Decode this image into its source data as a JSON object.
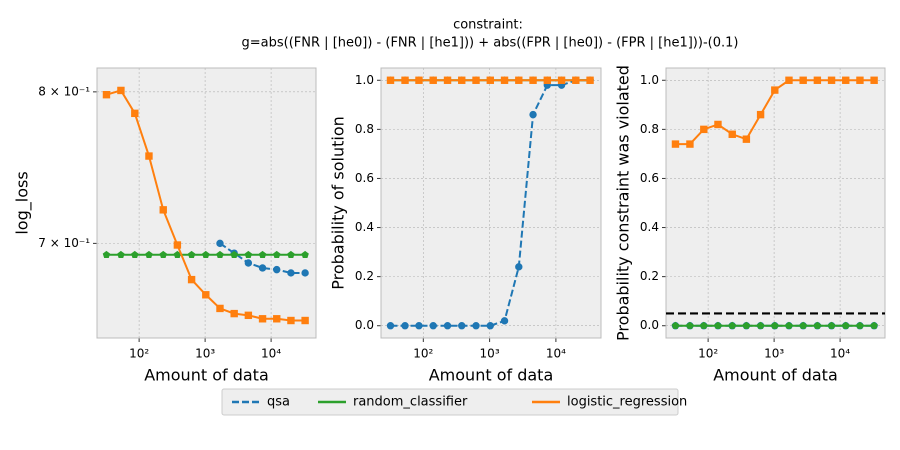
{
  "title": [
    "constraint:",
    "g=abs((FNR | [he0]) - (FNR | [he1])) + abs((FPR | [he0]) - (FPR | [he1]))-(0.1)"
  ],
  "chart_data": [
    {
      "type": "line",
      "xlabel": "Amount of data",
      "ylabel": "log_loss",
      "xlog": true,
      "ylog": true,
      "grid": true,
      "x": [
        32,
        53,
        86,
        141,
        232,
        380,
        624,
        1024,
        1680,
        2757,
        4523,
        7422,
        12177,
        19978,
        32768
      ],
      "xlim": [
        23,
        47900
      ],
      "ylim": [
        0.644,
        0.817
      ],
      "xticks": [
        {
          "value": 100,
          "label": "10²"
        },
        {
          "value": 1000,
          "label": "10³"
        },
        {
          "value": 10000,
          "label": "10⁴"
        }
      ],
      "yticks": [
        {
          "value": 0.8,
          "label": "8 × 10⁻¹"
        },
        {
          "value": 0.7,
          "label": "7 × 10⁻¹"
        }
      ],
      "series": [
        {
          "name": "qsa",
          "color": "#1f77b4",
          "linestyle": "dashed",
          "marker": "circle",
          "values": [
            null,
            null,
            null,
            null,
            null,
            null,
            null,
            null,
            0.7,
            0.694,
            0.688,
            0.685,
            0.684,
            0.682,
            0.682
          ]
        },
        {
          "name": "random_classifier",
          "color": "#2ca02c",
          "linestyle": "solid",
          "marker": "pentagon",
          "values": [
            0.693,
            0.693,
            0.693,
            0.693,
            0.693,
            0.693,
            0.693,
            0.693,
            0.693,
            0.693,
            0.693,
            0.693,
            0.693,
            0.693,
            0.693
          ]
        },
        {
          "name": "logistic_regression",
          "color": "#ff7f0e",
          "linestyle": "solid",
          "marker": "square",
          "values": [
            0.798,
            0.801,
            0.785,
            0.756,
            0.721,
            0.699,
            0.678,
            0.669,
            0.661,
            0.658,
            0.657,
            0.655,
            0.655,
            0.654,
            0.654
          ]
        }
      ]
    },
    {
      "type": "line",
      "xlabel": "Amount of data",
      "ylabel": "Probability of solution",
      "xlog": true,
      "ylog": false,
      "grid": true,
      "x": [
        32,
        53,
        86,
        141,
        232,
        380,
        624,
        1024,
        1680,
        2757,
        4523,
        7422,
        12177,
        19978,
        32768
      ],
      "xlim": [
        23,
        47900
      ],
      "ylim": [
        -0.05,
        1.05
      ],
      "xticks": [
        {
          "value": 100,
          "label": "10²"
        },
        {
          "value": 1000,
          "label": "10³"
        },
        {
          "value": 10000,
          "label": "10⁴"
        }
      ],
      "yticks": [
        {
          "value": 0,
          "label": "0.0"
        },
        {
          "value": 0.2,
          "label": "0.2"
        },
        {
          "value": 0.4,
          "label": "0.4"
        },
        {
          "value": 0.6,
          "label": "0.6"
        },
        {
          "value": 0.8,
          "label": "0.8"
        },
        {
          "value": 1,
          "label": "1.0"
        }
      ],
      "series": [
        {
          "name": "qsa",
          "color": "#1f77b4",
          "linestyle": "dashed",
          "marker": "circle",
          "values": [
            0,
            0,
            0,
            0,
            0,
            0,
            0,
            0,
            0.02,
            0.24,
            0.86,
            0.98,
            0.98,
            1.0,
            1.0
          ]
        },
        {
          "name": "random_classifier",
          "color": "#2ca02c",
          "linestyle": "solid",
          "marker": "pentagon",
          "values": [
            1,
            1,
            1,
            1,
            1,
            1,
            1,
            1,
            1,
            1,
            1,
            1,
            1,
            1,
            1
          ]
        },
        {
          "name": "logistic_regression",
          "color": "#ff7f0e",
          "linestyle": "solid",
          "marker": "square",
          "values": [
            1,
            1,
            1,
            1,
            1,
            1,
            1,
            1,
            1,
            1,
            1,
            1,
            1,
            1,
            1
          ]
        }
      ]
    },
    {
      "type": "line",
      "xlabel": "Amount of data",
      "ylabel": "Probability constraint was violated",
      "xlog": true,
      "ylog": false,
      "grid": true,
      "x": [
        32,
        53,
        86,
        141,
        232,
        380,
        624,
        1024,
        1680,
        2757,
        4523,
        7422,
        12177,
        19978,
        32768
      ],
      "xlim": [
        23,
        47900
      ],
      "ylim": [
        -0.05,
        1.05
      ],
      "hline": 0.05,
      "xticks": [
        {
          "value": 100,
          "label": "10²"
        },
        {
          "value": 1000,
          "label": "10³"
        },
        {
          "value": 10000,
          "label": "10⁴"
        }
      ],
      "yticks": [
        {
          "value": 0,
          "label": "0.0"
        },
        {
          "value": 0.2,
          "label": "0.2"
        },
        {
          "value": 0.4,
          "label": "0.4"
        },
        {
          "value": 0.6,
          "label": "0.6"
        },
        {
          "value": 0.8,
          "label": "0.8"
        },
        {
          "value": 1,
          "label": "1.0"
        }
      ],
      "series": [
        {
          "name": "qsa",
          "color": "#1f77b4",
          "linestyle": "dashed",
          "marker": "circle",
          "values": [
            0,
            0,
            0,
            0,
            0,
            0,
            0,
            0,
            0,
            0,
            0,
            0,
            0,
            0,
            0
          ]
        },
        {
          "name": "random_classifier",
          "color": "#2ca02c",
          "linestyle": "solid",
          "marker": "pentagon",
          "values": [
            0,
            0,
            0,
            0,
            0,
            0,
            0,
            0,
            0,
            0,
            0,
            0,
            0,
            0,
            0
          ]
        },
        {
          "name": "logistic_regression",
          "color": "#ff7f0e",
          "linestyle": "solid",
          "marker": "square",
          "values": [
            0.74,
            0.74,
            0.8,
            0.82,
            0.78,
            0.76,
            0.86,
            0.96,
            1.0,
            1.0,
            1.0,
            1.0,
            1.0,
            1.0,
            1.0
          ]
        }
      ]
    }
  ]
}
